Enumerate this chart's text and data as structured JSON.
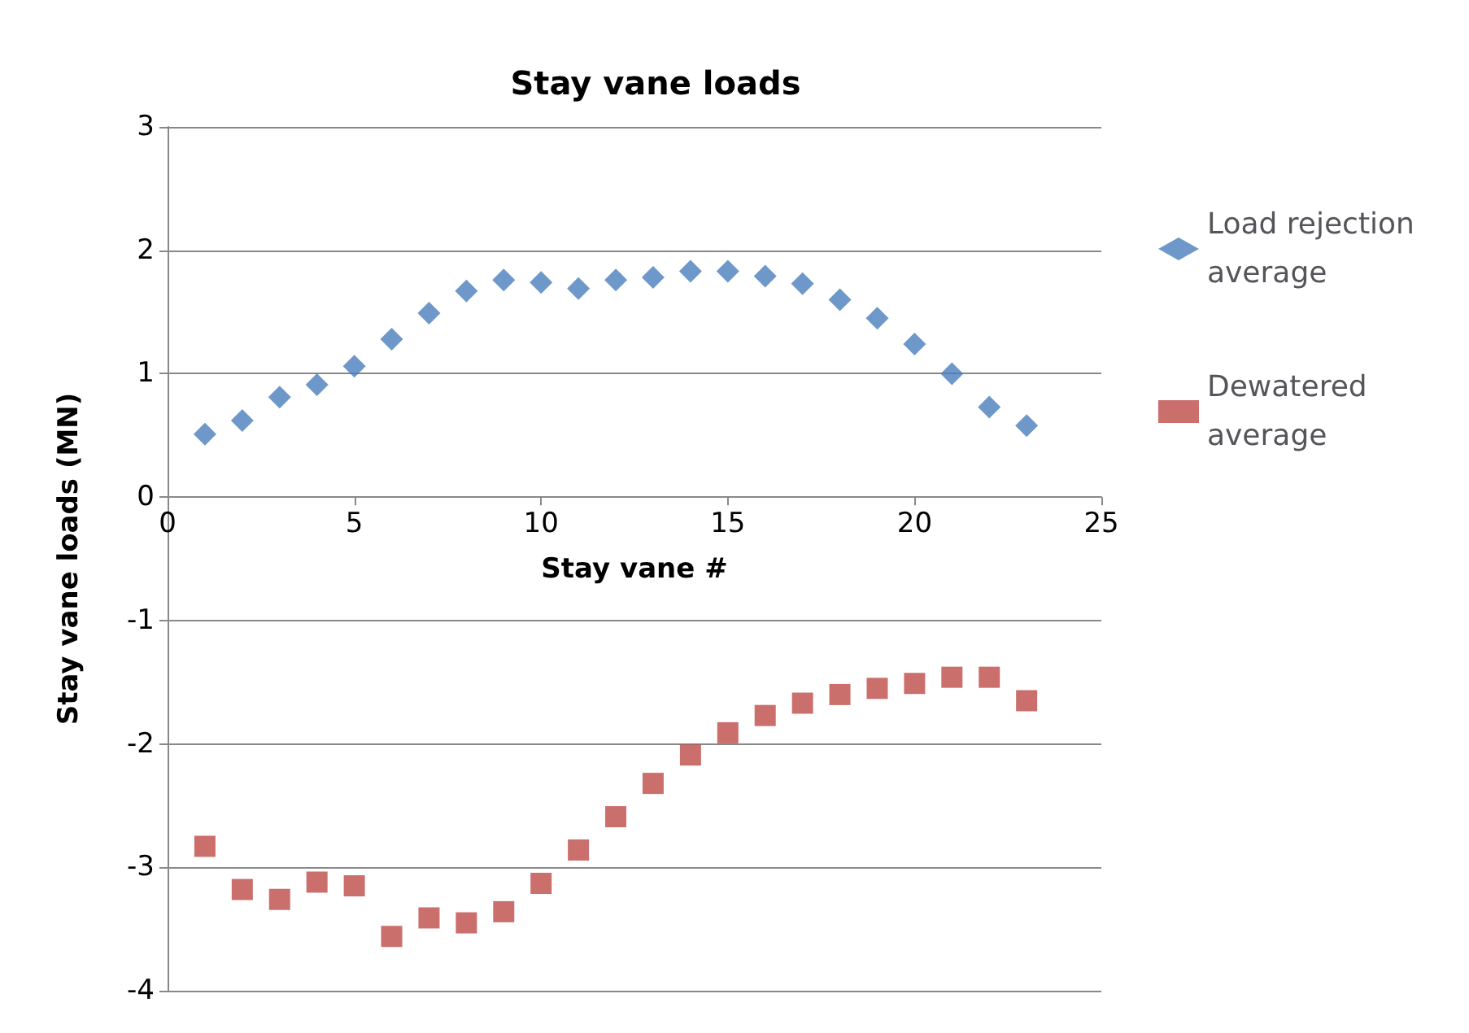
{
  "chart_data": {
    "type": "scatter",
    "title": "Stay vane loads",
    "xlabel": "Stay vane #",
    "ylabel": "Stay vane loads (MN)",
    "x": [
      1,
      2,
      3,
      4,
      5,
      6,
      7,
      8,
      9,
      10,
      11,
      12,
      13,
      14,
      15,
      16,
      17,
      18,
      19,
      20,
      21,
      22,
      23
    ],
    "series": [
      {
        "name": "Load rejection average",
        "color": "#4a7ebb",
        "marker": "diamond",
        "values": [
          0.51,
          0.62,
          0.81,
          0.91,
          1.06,
          1.28,
          1.49,
          1.67,
          1.76,
          1.74,
          1.69,
          1.76,
          1.78,
          1.83,
          1.83,
          1.79,
          1.73,
          1.6,
          1.45,
          1.24,
          1.0,
          0.73,
          0.58
        ]
      },
      {
        "name": "Dewatered average",
        "color": "#be4b48",
        "marker": "square",
        "values": [
          -2.83,
          -3.18,
          -3.26,
          -3.12,
          -3.15,
          -3.56,
          -3.41,
          -3.45,
          -3.36,
          -3.13,
          -2.86,
          -2.59,
          -2.32,
          -2.09,
          -1.91,
          -1.77,
          -1.67,
          -1.6,
          -1.55,
          -1.51,
          -1.46,
          -1.46,
          -1.65
        ]
      }
    ],
    "xlim": [
      0,
      25
    ],
    "xticks": [
      0,
      5,
      10,
      15,
      20,
      25
    ],
    "ylim": [
      -4,
      3
    ],
    "yticks": [
      -4,
      -3,
      -2,
      -1,
      0,
      1,
      2,
      3
    ],
    "grid": "y",
    "legend": "right"
  }
}
